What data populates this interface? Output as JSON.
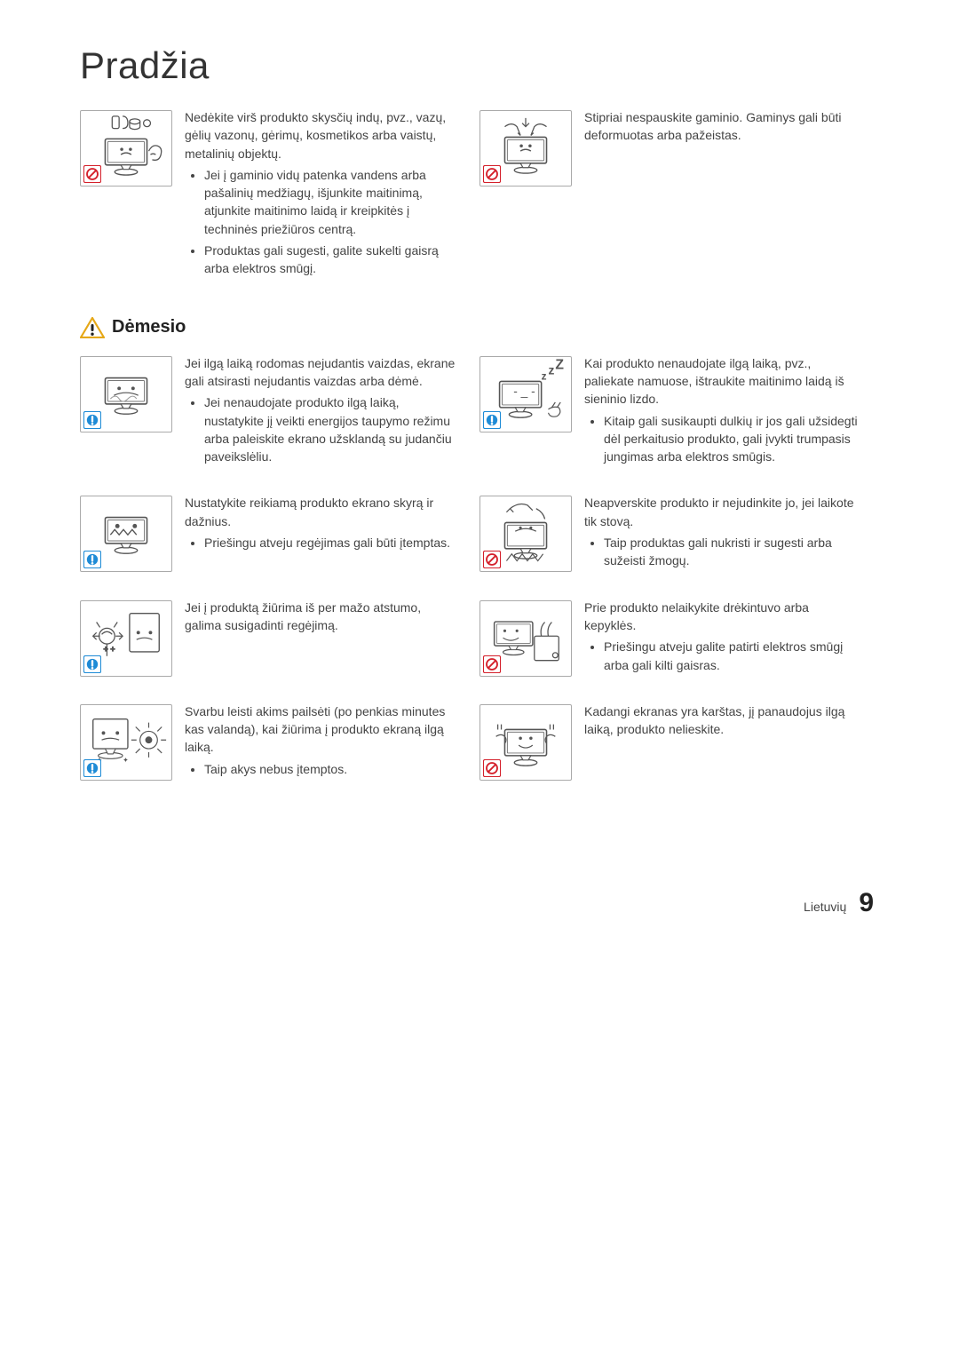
{
  "page": {
    "title": "Pradžia",
    "section_heading": "Dėmesio",
    "footer_language": "Lietuvių",
    "footer_page": "9"
  },
  "colors": {
    "prohibit_ring": "#d4202b",
    "info_fill": "#1e8bd6",
    "warn_stroke": "#e6a817",
    "line": "#555555"
  },
  "items": [
    {
      "left": {
        "picto": "liquids-on-tv",
        "badge": "prohibit",
        "lead": "Nedėkite virš produkto skysčių indų, pvz., vazų, gėlių vazonų, gėrimų, kosmetikos arba vaistų, metalinių objektų.",
        "bullets": [
          "Jei į gaminio vidų patenka vandens arba pašalinių medžiagų, išjunkite maitinimą, atjunkite maitinimo laidą ir kreipkitės į techninės priežiūros centrą.",
          "Produktas gali sugesti, galite sukelti gaisrą arba elektros smūgį."
        ]
      },
      "right": {
        "picto": "press-monitor",
        "badge": "prohibit",
        "lead": "Stipriai nespauskite gaminio. Gaminys gali būti deformuotas arba pažeistas.",
        "bullets": []
      }
    },
    {
      "left": {
        "picto": "burn-in",
        "badge": "info",
        "lead": "Jei ilgą laiką rodomas nejudantis vaizdas, ekrane gali atsirasti nejudantis vaizdas arba dėmė.",
        "bullets": [
          "Jei nenaudojate produkto ilgą laiką, nustatykite jį veikti energijos taupymo režimu arba paleiskite ekrano užsklandą su judančiu paveikslėliu."
        ]
      },
      "right": {
        "picto": "sleep-zzz",
        "badge": "info",
        "lead": "Kai produkto nenaudojate ilgą laiką, pvz., paliekate namuose, ištraukite maitinimo laidą iš sieninio lizdo.",
        "bullets": [
          "Kitaip gali susikaupti dulkių ir jos gali užsidegti dėl perkaitusio produkto, gali įvykti trumpasis jungimas arba elektros smūgis."
        ]
      }
    },
    {
      "left": {
        "picto": "resolution",
        "badge": "info",
        "lead": "Nustatykite reikiamą produkto ekrano skyrą ir dažnius.",
        "bullets": [
          "Priešingu atveju regėjimas gali būti įtemptas."
        ]
      },
      "right": {
        "picto": "flip-stand",
        "badge": "prohibit",
        "lead": "Neapverskite produkto ir nejudinkite jo, jei laikote tik stovą.",
        "bullets": [
          "Taip produktas gali nukristi ir sugesti arba sužeisti žmogų."
        ]
      }
    },
    {
      "left": {
        "picto": "close-view",
        "badge": "info",
        "lead": "Jei į produktą žiūrima iš per mažo atstumo, galima susigadinti regėjimą.",
        "bullets": []
      },
      "right": {
        "picto": "humidifier",
        "badge": "prohibit",
        "lead": "Prie produkto nelaikykite drėkintuvo arba kepyklės.",
        "bullets": [
          "Priešingu atveju galite patirti elektros smūgį arba gali kilti gaisras."
        ]
      }
    },
    {
      "left": {
        "picto": "rest-eyes",
        "badge": "info",
        "lead": "Svarbu leisti akims pailsėti (po penkias minutes kas valandą), kai žiūrima į produkto ekraną ilgą laiką.",
        "bullets": [
          "Taip akys nebus įtemptos."
        ]
      },
      "right": {
        "picto": "hot-surface",
        "badge": "prohibit",
        "lead": "Kadangi ekranas yra karštas, jį panaudojus ilgą laiką, produkto nelieskite.",
        "bullets": []
      }
    }
  ]
}
